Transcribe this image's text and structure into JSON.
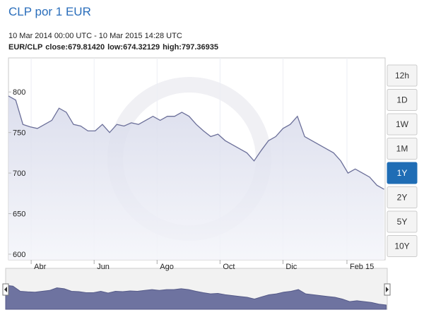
{
  "chart_data": {
    "type": "area",
    "title": "CLP por 1 EUR",
    "subtitle": "10 Mar 2014 00:00 UTC - 10 Mar 2015 14:28 UTC",
    "pair": "EUR/CLP",
    "stats": [
      {
        "label": "close:",
        "value": "679.81420"
      },
      {
        "label": "low:",
        "value": "674.32129"
      },
      {
        "label": "high:",
        "value": "797.36935"
      }
    ],
    "x": [
      "2014-03-10",
      "2014-03-17",
      "2014-03-24",
      "2014-03-31",
      "2014-04-07",
      "2014-04-14",
      "2014-04-21",
      "2014-04-28",
      "2014-05-05",
      "2014-05-12",
      "2014-05-19",
      "2014-05-26",
      "2014-06-02",
      "2014-06-09",
      "2014-06-16",
      "2014-06-23",
      "2014-06-30",
      "2014-07-07",
      "2014-07-14",
      "2014-07-21",
      "2014-07-28",
      "2014-08-04",
      "2014-08-11",
      "2014-08-18",
      "2014-08-25",
      "2014-09-01",
      "2014-09-08",
      "2014-09-15",
      "2014-09-22",
      "2014-09-29",
      "2014-10-06",
      "2014-10-13",
      "2014-10-20",
      "2014-10-27",
      "2014-11-03",
      "2014-11-10",
      "2014-11-17",
      "2014-11-24",
      "2014-12-01",
      "2014-12-08",
      "2014-12-15",
      "2014-12-22",
      "2014-12-29",
      "2015-01-05",
      "2015-01-12",
      "2015-01-19",
      "2015-01-26",
      "2015-02-02",
      "2015-02-09",
      "2015-02-16",
      "2015-02-23",
      "2015-03-02",
      "2015-03-09"
    ],
    "series": [
      {
        "name": "EUR/CLP",
        "color": "#6b6f99",
        "values": [
          795,
          790,
          760,
          757,
          755,
          760,
          765,
          780,
          775,
          760,
          758,
          752,
          752,
          760,
          750,
          760,
          758,
          762,
          760,
          765,
          770,
          765,
          770,
          770,
          775,
          770,
          760,
          752,
          745,
          748,
          740,
          735,
          730,
          725,
          715,
          728,
          740,
          745,
          755,
          760,
          770,
          745,
          740,
          735,
          730,
          725,
          715,
          700,
          705,
          700,
          695,
          685,
          680
        ]
      }
    ],
    "xlim": [
      "2014-03-10",
      "2015-03-10"
    ],
    "xticks": [
      {
        "value": "2014-04-01",
        "label": "Abr"
      },
      {
        "value": "2014-06-01",
        "label": "Jun"
      },
      {
        "value": "2014-08-01",
        "label": "Ago"
      },
      {
        "value": "2014-10-01",
        "label": "Oct"
      },
      {
        "value": "2014-12-01",
        "label": "Dic"
      },
      {
        "value": "2015-02-01",
        "label": "Feb 15"
      }
    ],
    "ylim": [
      593,
      842
    ],
    "yticks": [
      600,
      650,
      700,
      750,
      800
    ],
    "range_buttons": [
      "12h",
      "1D",
      "1W",
      "1M",
      "1Y",
      "2Y",
      "5Y",
      "10Y"
    ],
    "selected_button": "1Y"
  }
}
